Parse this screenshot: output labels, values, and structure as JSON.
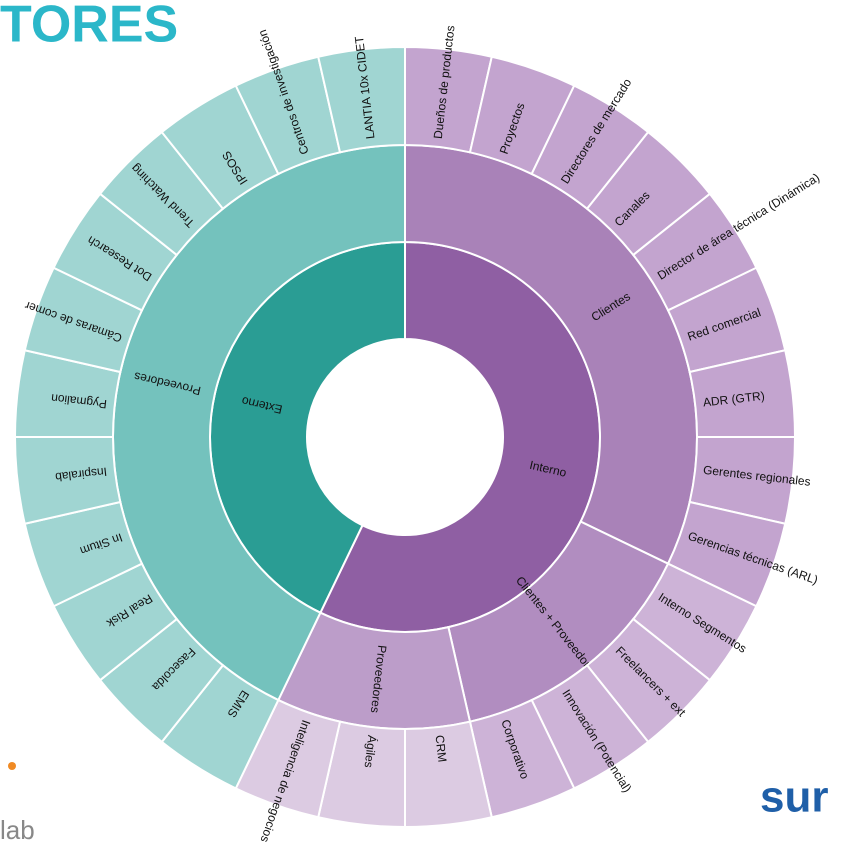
{
  "brand": {
    "heading": "TORES",
    "logo_left": "lab",
    "logo_right": "sur"
  },
  "chart_data": {
    "type": "sunburst",
    "nodes": [
      {
        "name": "Interno",
        "color": "#8f5fa3",
        "children": [
          {
            "name": "Clientes",
            "color": "#a982b8",
            "leaf_color": "#c3a4cf",
            "children": [
              {
                "name": "Dueños de productos",
                "value": 1
              },
              {
                "name": "Proyectos",
                "value": 1
              },
              {
                "name": "Directores de mercado",
                "value": 1
              },
              {
                "name": "Canales",
                "value": 1
              },
              {
                "name": "Director de área técnica (Dinámica)",
                "value": 1
              },
              {
                "name": "Red comercial",
                "value": 1
              },
              {
                "name": "ADR (GTR)",
                "value": 1
              },
              {
                "name": "Gerentes regionales",
                "value": 1
              },
              {
                "name": "Gerencias técnicas (ARL)",
                "value": 1
              }
            ]
          },
          {
            "name": "Clientes + Proveedores",
            "color": "#b18dc0",
            "leaf_color": "#cdb3d7",
            "children": [
              {
                "name": "Interno Segmentos",
                "value": 1
              },
              {
                "name": "Freelancers + ext",
                "value": 1
              },
              {
                "name": "Innovación (Potencial)",
                "value": 1
              },
              {
                "name": "Corporativo",
                "value": 1
              }
            ]
          },
          {
            "name": "Proveedores",
            "color": "#bc9dc9",
            "leaf_color": "#dccbe2",
            "children": [
              {
                "name": "CRM",
                "value": 1
              },
              {
                "name": "Ágiles",
                "value": 1
              },
              {
                "name": "Inteligencia de negocios",
                "value": 1
              }
            ]
          }
        ]
      },
      {
        "name": "Externo",
        "color": "#2a9d94",
        "children": [
          {
            "name": "Proveedores",
            "color": "#74c2bd",
            "leaf_color": "#a0d5d2",
            "children": [
              {
                "name": "EMIS",
                "value": 1
              },
              {
                "name": "Fasecolda",
                "value": 1
              },
              {
                "name": "Real Risk",
                "value": 1
              },
              {
                "name": "In Situm",
                "value": 1
              },
              {
                "name": "Inspiralab",
                "value": 1
              },
              {
                "name": "Pygmalion",
                "value": 1
              },
              {
                "name": "Cámaras de comer",
                "value": 1
              },
              {
                "name": "Dot Research",
                "value": 1
              },
              {
                "name": "Trend Watching",
                "value": 1
              },
              {
                "name": "IPSOS",
                "value": 1
              },
              {
                "name": "Centros de investigación",
                "value": 1
              },
              {
                "name": "LANTIA 10x CIDET",
                "value": 1
              }
            ]
          }
        ]
      }
    ]
  }
}
